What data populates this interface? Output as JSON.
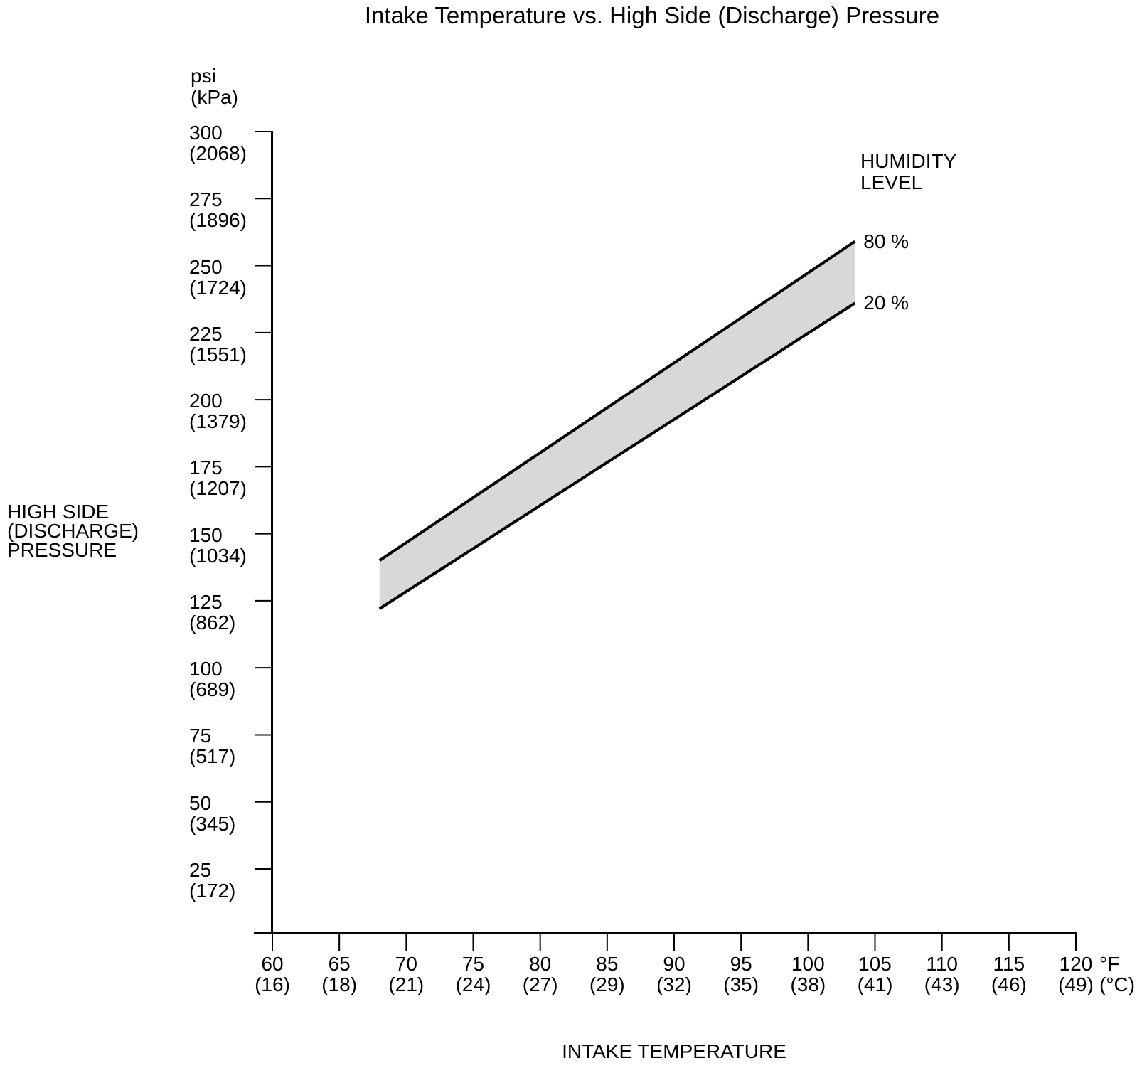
{
  "title": "Intake Temperature vs. High Side (Discharge) Pressure",
  "y_axis": {
    "unit_line1": "psi",
    "unit_line2": "(kPa)",
    "label_line1": "HIGH SIDE",
    "label_line2": "(DISCHARGE)",
    "label_line3": "PRESSURE"
  },
  "x_axis": {
    "label": "INTAKE TEMPERATURE",
    "unit_line1": "°F",
    "unit_line2": "(°C)"
  },
  "legend": {
    "title_line1": "HUMIDITY",
    "title_line2": "LEVEL"
  },
  "chart_data": {
    "type": "area",
    "title": "Intake Temperature vs. High Side (Discharge) Pressure",
    "xlabel": "INTAKE TEMPERATURE",
    "ylabel": "HIGH SIDE (DISCHARGE) PRESSURE",
    "x_unit": "°F (°C)",
    "y_unit": "psi (kPa)",
    "xlim_f": [
      60,
      120
    ],
    "ylim_psi": [
      0,
      300
    ],
    "grid": false,
    "legend_title": "HUMIDITY LEVEL",
    "band_fill": "#d8d8d8",
    "line_color": "#000000",
    "x_ticks": [
      {
        "f": 60,
        "c": 16
      },
      {
        "f": 65,
        "c": 18
      },
      {
        "f": 70,
        "c": 21
      },
      {
        "f": 75,
        "c": 24
      },
      {
        "f": 80,
        "c": 27
      },
      {
        "f": 85,
        "c": 29
      },
      {
        "f": 90,
        "c": 32
      },
      {
        "f": 95,
        "c": 35
      },
      {
        "f": 100,
        "c": 38
      },
      {
        "f": 105,
        "c": 41
      },
      {
        "f": 110,
        "c": 43
      },
      {
        "f": 115,
        "c": 46
      },
      {
        "f": 120,
        "c": 49
      }
    ],
    "y_ticks": [
      {
        "psi": 300,
        "kpa": 2068
      },
      {
        "psi": 275,
        "kpa": 1896
      },
      {
        "psi": 250,
        "kpa": 1724
      },
      {
        "psi": 225,
        "kpa": 1551
      },
      {
        "psi": 200,
        "kpa": 1379
      },
      {
        "psi": 175,
        "kpa": 1207
      },
      {
        "psi": 150,
        "kpa": 1034
      },
      {
        "psi": 125,
        "kpa": 862
      },
      {
        "psi": 100,
        "kpa": 689
      },
      {
        "psi": 75,
        "kpa": 517
      },
      {
        "psi": 50,
        "kpa": 345
      },
      {
        "psi": 25,
        "kpa": 172
      }
    ],
    "series": [
      {
        "name": "80 %",
        "points": [
          {
            "f": 68,
            "psi": 140
          },
          {
            "f": 103.5,
            "psi": 259
          }
        ]
      },
      {
        "name": "20 %",
        "points": [
          {
            "f": 68,
            "psi": 122
          },
          {
            "f": 103.5,
            "psi": 236
          }
        ]
      }
    ]
  }
}
